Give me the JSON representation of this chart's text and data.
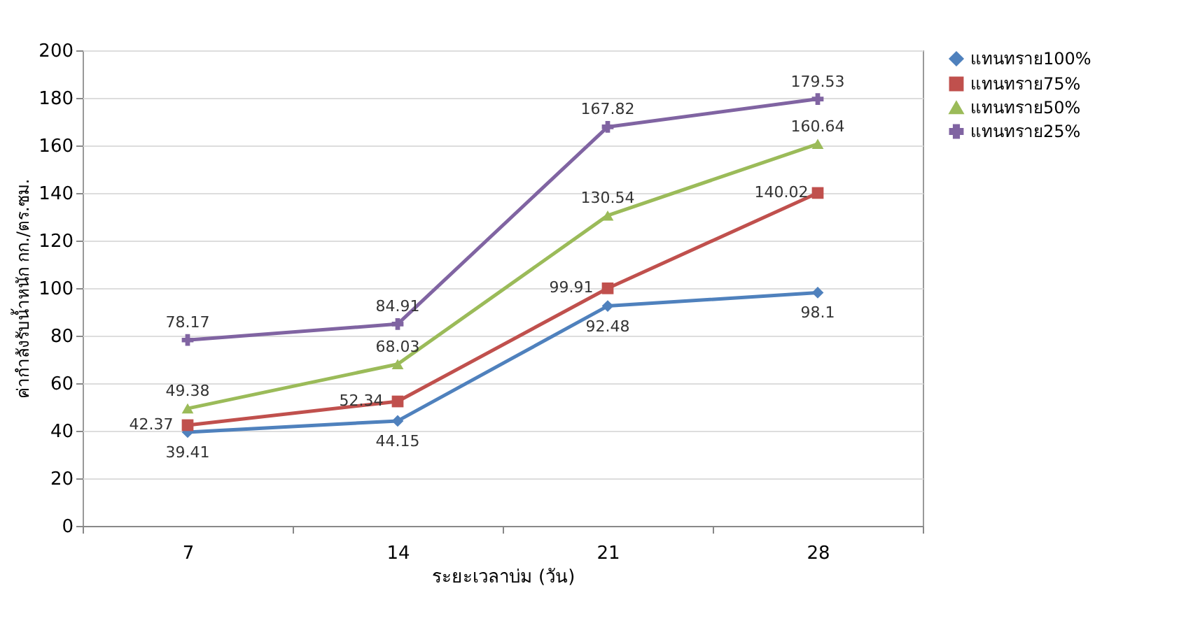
{
  "chart_data": {
    "type": "line",
    "xlabel": "ระยะเวลาบ่ม (วัน)",
    "ylabel": "ค่ากำลังรับน้ำหนัก กก./ตร.ซม.",
    "categories": [
      "7",
      "14",
      "21",
      "28"
    ],
    "ylim": [
      0,
      200
    ],
    "yticks": [
      0,
      20,
      40,
      60,
      80,
      100,
      120,
      140,
      160,
      180,
      200
    ],
    "grid": "y",
    "legend": "right",
    "data_labels": true,
    "line_style": "solid",
    "series": [
      {
        "name": "แทนทราย100%",
        "color": "#4f81bd",
        "marker": "diamond",
        "values": [
          39.41,
          44.15,
          92.48,
          98.1
        ]
      },
      {
        "name": "แทนทราย75%",
        "color": "#c0504d",
        "marker": "square",
        "values": [
          42.37,
          52.34,
          99.91,
          140.02
        ]
      },
      {
        "name": "แทนทราย50%",
        "color": "#9bbb59",
        "marker": "triangle",
        "values": [
          49.38,
          68.03,
          130.54,
          160.64
        ]
      },
      {
        "name": "แทนทราย25%",
        "color": "#8064a2",
        "marker": "cross",
        "values": [
          78.17,
          84.91,
          167.82,
          179.53
        ]
      }
    ]
  }
}
